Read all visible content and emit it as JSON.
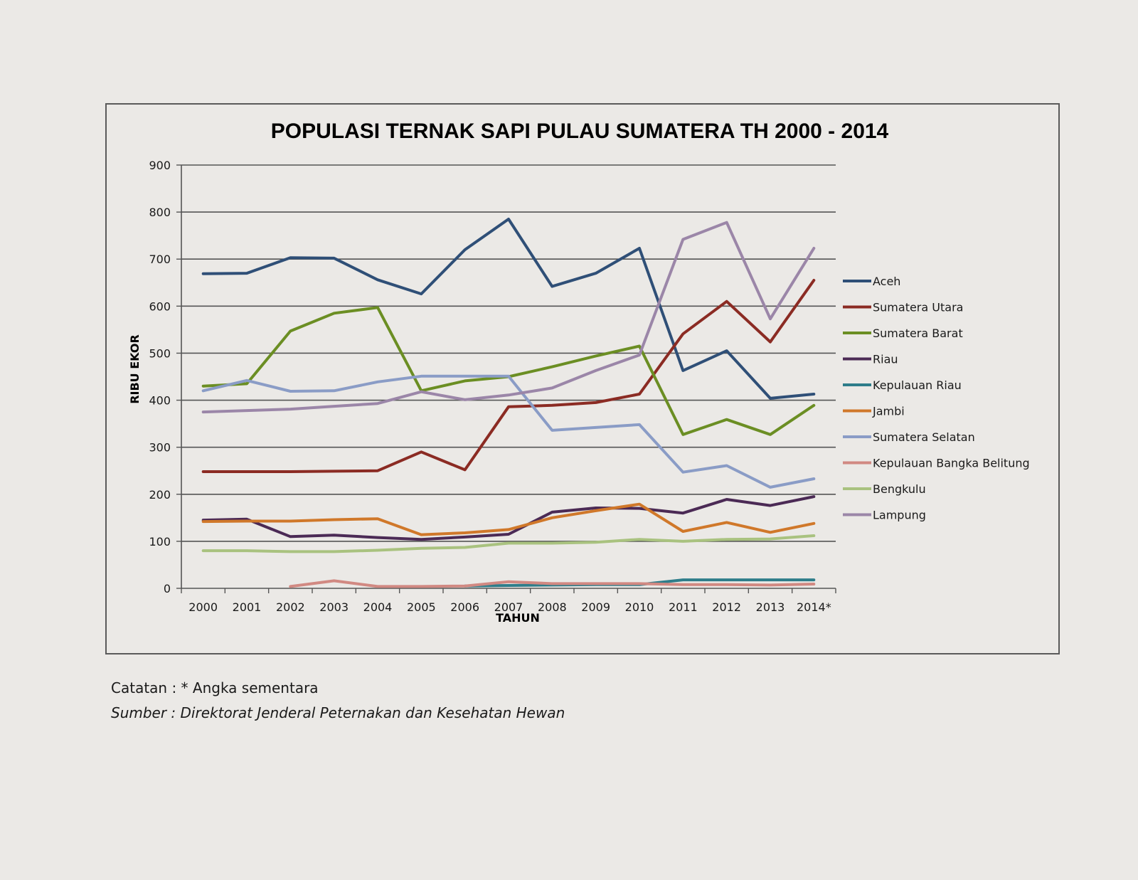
{
  "chart_data": {
    "type": "line",
    "title": "POPULASI TERNAK SAPI PULAU SUMATERA TH 2000 - 2014",
    "xlabel": "TAHUN",
    "ylabel": "RIBU EKOR",
    "ylim": [
      0,
      900
    ],
    "yticks": [
      0,
      100,
      200,
      300,
      400,
      500,
      600,
      700,
      800,
      900
    ],
    "grid": true,
    "legend_position": "right",
    "categories": [
      "2000",
      "2001",
      "2002",
      "2003",
      "2004",
      "2005",
      "2006",
      "2007",
      "2008",
      "2009",
      "2010",
      "2011",
      "2012",
      "2013",
      "2014*"
    ],
    "series": [
      {
        "name": "Aceh",
        "color": "#2f4f77",
        "values": [
          669,
          670,
          703,
          702,
          656,
          626,
          720,
          785,
          642,
          670,
          723,
          463,
          505,
          404,
          413
        ]
      },
      {
        "name": "Sumatera Utara",
        "color": "#8b2b23",
        "values": [
          248,
          248,
          248,
          249,
          250,
          290,
          252,
          386,
          389,
          395,
          413,
          541,
          610,
          524,
          655
        ]
      },
      {
        "name": "Sumatera Barat",
        "color": "#6b8e23",
        "values": [
          430,
          435,
          547,
          585,
          597,
          420,
          441,
          450,
          471,
          494,
          515,
          327,
          359,
          327,
          389
        ]
      },
      {
        "name": "Riau",
        "color": "#4b2a55",
        "values": [
          145,
          147,
          110,
          113,
          108,
          104,
          109,
          115,
          162,
          171,
          170,
          160,
          189,
          176,
          195
        ]
      },
      {
        "name": "Kepulauan Riau",
        "color": "#2e7d8a",
        "values": [
          null,
          null,
          null,
          null,
          null,
          null,
          5,
          6,
          7,
          8,
          8,
          18,
          18,
          18,
          18
        ]
      },
      {
        "name": "Jambi",
        "color": "#d0782a",
        "values": [
          142,
          143,
          143,
          146,
          148,
          114,
          118,
          125,
          150,
          165,
          179,
          121,
          140,
          119,
          138
        ]
      },
      {
        "name": "Sumatera Selatan",
        "color": "#8a9cc6",
        "values": [
          420,
          442,
          419,
          420,
          439,
          451,
          451,
          451,
          336,
          342,
          348,
          247,
          261,
          215,
          233
        ]
      },
      {
        "name": "Kepulauan Bangka Belitung",
        "color": "#d18982",
        "values": [
          null,
          null,
          4,
          16,
          4,
          4,
          5,
          14,
          10,
          10,
          10,
          8,
          8,
          7,
          9
        ]
      },
      {
        "name": "Bengkulu",
        "color": "#a9c27f",
        "values": [
          80,
          80,
          78,
          78,
          81,
          85,
          87,
          96,
          96,
          98,
          104,
          100,
          104,
          105,
          112
        ]
      },
      {
        "name": "Lampung",
        "color": "#9b86a8",
        "values": [
          375,
          378,
          381,
          387,
          393,
          418,
          401,
          411,
          426,
          463,
          496,
          742,
          778,
          573,
          723
        ]
      }
    ]
  },
  "notes": {
    "catatan": "Catatan : * Angka sementara",
    "sumber": "Sumber : Direktorat Jenderal Peternakan dan Kesehatan Hewan"
  }
}
